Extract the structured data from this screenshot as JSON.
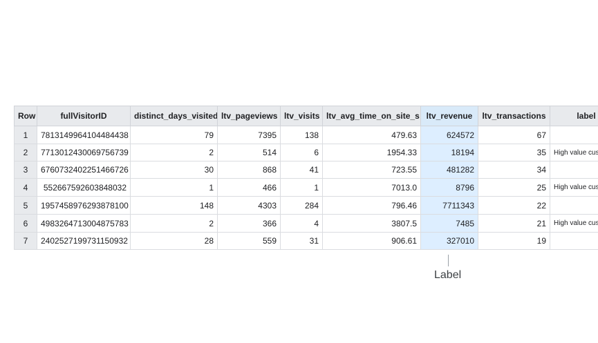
{
  "table": {
    "columns": [
      "Row",
      "fullVisitorID",
      "distinct_days_visited",
      "ltv_pageviews",
      "ltv_visits",
      "ltv_avg_time_on_site_s",
      "ltv_revenue",
      "ltv_transactions",
      "label"
    ],
    "rows": [
      {
        "row": "1",
        "fullVisitorID": "7813149964104484438",
        "distinct_days_visited": "79",
        "ltv_pageviews": "7395",
        "ltv_visits": "138",
        "ltv_avg_time_on_site_s": "479.63",
        "ltv_revenue": "624572",
        "ltv_transactions": "67",
        "label": ""
      },
      {
        "row": "2",
        "fullVisitorID": "7713012430069756739",
        "distinct_days_visited": "2",
        "ltv_pageviews": "514",
        "ltv_visits": "6",
        "ltv_avg_time_on_site_s": "1954.33",
        "ltv_revenue": "18194",
        "ltv_transactions": "35",
        "label": "High value cus"
      },
      {
        "row": "3",
        "fullVisitorID": "6760732402251466726",
        "distinct_days_visited": "30",
        "ltv_pageviews": "868",
        "ltv_visits": "41",
        "ltv_avg_time_on_site_s": "723.55",
        "ltv_revenue": "481282",
        "ltv_transactions": "34",
        "label": ""
      },
      {
        "row": "4",
        "fullVisitorID": "552667592603848032",
        "distinct_days_visited": "1",
        "ltv_pageviews": "466",
        "ltv_visits": "1",
        "ltv_avg_time_on_site_s": "7013.0",
        "ltv_revenue": "8796",
        "ltv_transactions": "25",
        "label": "High value cus"
      },
      {
        "row": "5",
        "fullVisitorID": "1957458976293878100",
        "distinct_days_visited": "148",
        "ltv_pageviews": "4303",
        "ltv_visits": "284",
        "ltv_avg_time_on_site_s": "796.46",
        "ltv_revenue": "7711343",
        "ltv_transactions": "22",
        "label": ""
      },
      {
        "row": "6",
        "fullVisitorID": "4983264713004875783",
        "distinct_days_visited": "2",
        "ltv_pageviews": "366",
        "ltv_visits": "4",
        "ltv_avg_time_on_site_s": "3807.5",
        "ltv_revenue": "7485",
        "ltv_transactions": "21",
        "label": "High value cus"
      },
      {
        "row": "7",
        "fullVisitorID": "2402527199731150932",
        "distinct_days_visited": "28",
        "ltv_pageviews": "559",
        "ltv_visits": "31",
        "ltv_avg_time_on_site_s": "906.61",
        "ltv_revenue": "327010",
        "ltv_transactions": "19",
        "label": ""
      }
    ]
  },
  "annotation": {
    "text": "Label"
  },
  "colors": {
    "header_bg": "#e8eaed",
    "highlight": "#ddeeff",
    "border": "#dadce0"
  }
}
